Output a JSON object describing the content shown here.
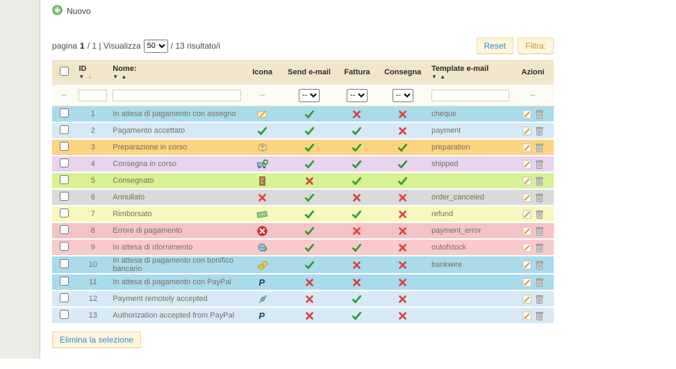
{
  "toolbar": {
    "new_label": "Nuovo"
  },
  "pagination": {
    "prefix": "pagina",
    "current": "1",
    "middle": "/ 1 | Visualizza",
    "page_size": "50",
    "suffix": "/ 13 risultato/i"
  },
  "buttons": {
    "reset": "Reset",
    "filter": "Filtra:",
    "delete_selection": "Elimina la selezione"
  },
  "icons": {
    "sort_desc": "▼",
    "sort_asc": "▲"
  },
  "table": {
    "headers": {
      "id": "ID",
      "name": "Nome:",
      "icon": "Icona",
      "send_email": "Send e-mail",
      "invoice": "Fattura",
      "delivery": "Consegna",
      "template": "Template e-mail",
      "actions": "Azioni"
    },
    "filter": {
      "dash": "--",
      "select_empty": "--"
    },
    "rows": [
      {
        "id": "1",
        "name": "In attesa di pagamento con assegno",
        "icon": "cheque-icon",
        "send_email": true,
        "invoice": false,
        "delivery": false,
        "template": "cheque",
        "color": "#A9DBEB"
      },
      {
        "id": "2",
        "name": "Pagamento accettato",
        "icon": "check-status-icon",
        "send_email": true,
        "invoice": true,
        "delivery": false,
        "template": "payment",
        "color": "#D7E9F5"
      },
      {
        "id": "3",
        "name": "Preparazione in corso",
        "icon": "package-icon",
        "send_email": true,
        "invoice": true,
        "delivery": true,
        "template": "preparation",
        "color": "#FBD381"
      },
      {
        "id": "4",
        "name": "Consegna in corso",
        "icon": "truck-icon",
        "send_email": true,
        "invoice": true,
        "delivery": true,
        "template": "shipped",
        "color": "#EAD3EE"
      },
      {
        "id": "5",
        "name": "Consegnato",
        "icon": "door-icon",
        "send_email": false,
        "invoice": true,
        "delivery": true,
        "template": "",
        "color": "#D7F193"
      },
      {
        "id": "6",
        "name": "Annullato",
        "icon": "cross-status-icon",
        "send_email": true,
        "invoice": false,
        "delivery": false,
        "template": "order_canceled",
        "color": "#DADADA"
      },
      {
        "id": "7",
        "name": "Rimborsato",
        "icon": "money-icon",
        "send_email": true,
        "invoice": true,
        "delivery": false,
        "template": "refund",
        "color": "#F8F8BC"
      },
      {
        "id": "8",
        "name": "Errore di pagamento",
        "icon": "payment-error-icon",
        "send_email": true,
        "invoice": false,
        "delivery": false,
        "template": "payment_error",
        "color": "#F5C3C6"
      },
      {
        "id": "9",
        "name": "In attesa di rifornimento",
        "icon": "restock-icon",
        "send_email": true,
        "invoice": true,
        "delivery": false,
        "template": "outofstock",
        "color": "#F8CACA"
      },
      {
        "id": "10",
        "name": "In attesa di pagamento con bonifico bancario",
        "icon": "coins-icon",
        "send_email": true,
        "invoice": false,
        "delivery": false,
        "template": "bankwire",
        "color": "#A9DBEB"
      },
      {
        "id": "11",
        "name": "In attesa di pagamento con PayPal",
        "icon": "paypal-icon",
        "send_email": false,
        "invoice": false,
        "delivery": false,
        "template": "",
        "color": "#A9DBEB"
      },
      {
        "id": "12",
        "name": "Payment remotely accepted",
        "icon": "plug-icon",
        "send_email": false,
        "invoice": true,
        "delivery": false,
        "template": "",
        "color": "#D7E9F5"
      },
      {
        "id": "13",
        "name": "Authorization accepted from PayPal",
        "icon": "paypal-icon",
        "send_email": false,
        "invoice": true,
        "delivery": false,
        "template": "",
        "color": "#D7E9F5"
      }
    ]
  }
}
